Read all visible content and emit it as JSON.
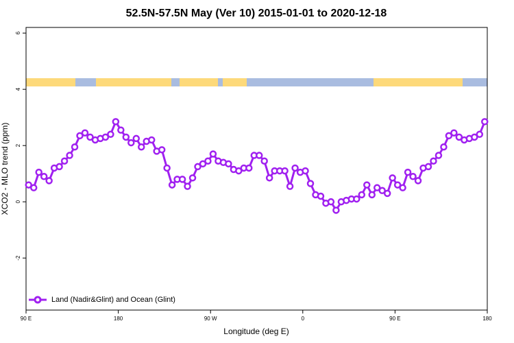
{
  "chart_data": {
    "type": "line",
    "title": "52.5N-57.5N May (Ver 10)   2015-01-01 to 2020-12-18",
    "x_label": "Longitude (deg E)",
    "y_label": "XCO2 - MLO trend (ppm)",
    "x": [
      92.5,
      97.5,
      102.5,
      107.5,
      112.5,
      117.5,
      122.5,
      127.5,
      132.5,
      137.5,
      142.5,
      147.5,
      152.5,
      157.5,
      162.5,
      167.5,
      172.5,
      177.5,
      182.5,
      187.5,
      192.5,
      197.5,
      202.5,
      207.5,
      212.5,
      217.5,
      222.5,
      227.5,
      232.5,
      237.5,
      242.5,
      247.5,
      252.5,
      257.5,
      262.5,
      267.5,
      272.5,
      277.5,
      282.5,
      287.5,
      292.5,
      297.5,
      302.5,
      307.5,
      312.5,
      317.5,
      322.5,
      327.5,
      332.5,
      337.5,
      342.5,
      347.5,
      352.5,
      357.5,
      362.5,
      367.5,
      372.5,
      377.5,
      382.5,
      387.5,
      392.5,
      397.5,
      402.5,
      407.5,
      412.5,
      417.5,
      422.5,
      427.5,
      432.5,
      437.5,
      442.5,
      447.5,
      452.5,
      457.5,
      462.5,
      467.5,
      472.5,
      477.5,
      482.5,
      487.5,
      492.5,
      497.5,
      502.5,
      507.5,
      512.5,
      517.5,
      522.5,
      527.5,
      532.5,
      537.5
    ],
    "series": [
      {
        "name": "Land (Nadir&Glint) and Ocean (Glint)",
        "color": "#a020f0",
        "values": [
          0.6,
          0.5,
          1.05,
          0.9,
          0.75,
          1.2,
          1.25,
          1.45,
          1.65,
          1.95,
          2.35,
          2.45,
          2.3,
          2.2,
          2.25,
          2.3,
          2.4,
          2.85,
          2.55,
          2.3,
          2.1,
          2.25,
          1.95,
          2.15,
          2.2,
          1.8,
          1.85,
          1.2,
          0.6,
          0.8,
          0.8,
          0.55,
          0.85,
          1.25,
          1.35,
          1.45,
          1.7,
          1.45,
          1.4,
          1.35,
          1.15,
          1.1,
          1.2,
          1.2,
          1.65,
          1.65,
          1.45,
          0.85,
          1.1,
          1.1,
          1.1,
          0.55,
          1.2,
          1.05,
          1.1,
          0.65,
          0.25,
          0.2,
          -0.05,
          0.0,
          -0.3,
          0.0,
          0.05,
          0.1,
          0.1,
          0.25,
          0.6,
          0.25,
          0.5,
          0.4,
          0.3,
          0.85,
          0.6,
          0.5,
          1.05,
          0.9,
          0.75,
          1.2,
          1.25,
          1.45,
          1.65,
          1.95,
          2.35,
          2.45,
          2.3,
          2.2,
          2.25,
          2.3,
          2.4,
          2.85
        ]
      }
    ],
    "xlim": [
      90,
      540
    ],
    "xticks": [
      {
        "value": 90,
        "label": "90 E"
      },
      180,
      {
        "value": 270,
        "label": "90 W"
      },
      {
        "value": 360,
        "label": "0"
      },
      {
        "value": 450,
        "label": "90 E"
      },
      {
        "value": 540,
        "label": "180"
      }
    ],
    "ylim": [
      -3.85,
      6.2
    ],
    "yticks": [
      -2,
      0,
      2,
      4,
      6
    ],
    "legend": "bottom-left"
  }
}
